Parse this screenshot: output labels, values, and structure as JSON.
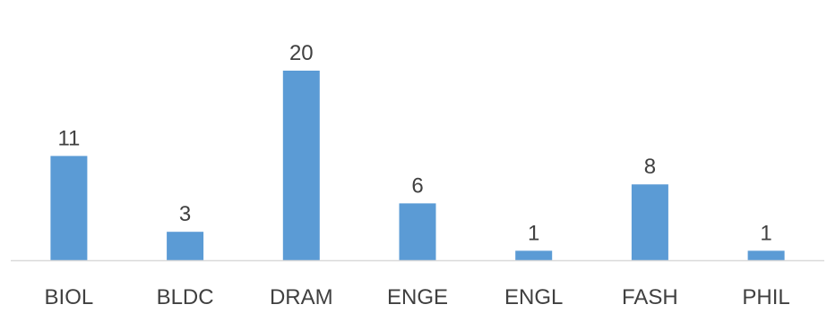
{
  "chart_data": {
    "type": "bar",
    "categories": [
      "BIOL",
      "BLDC",
      "DRAM",
      "ENGE",
      "ENGL",
      "FASH",
      "PHIL"
    ],
    "values": [
      11,
      3,
      20,
      6,
      1,
      8,
      1
    ],
    "data_labels": [
      "11",
      "3",
      "20",
      "6",
      "1",
      "8",
      "1"
    ],
    "title": "",
    "xlabel": "",
    "ylabel": "",
    "ylim": [
      0,
      20
    ],
    "grid": false,
    "legend": "none",
    "bar_color": "#5B9BD5",
    "axis_color": "#D9D9D9",
    "text_color": "#404040"
  }
}
